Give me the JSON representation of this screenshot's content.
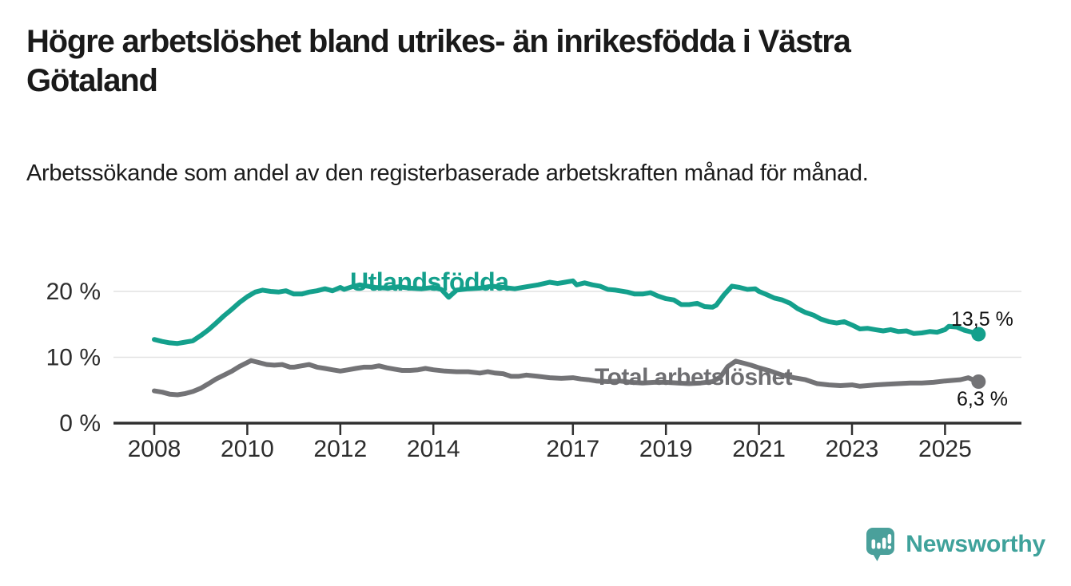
{
  "header": {
    "title": "Högre arbetslöshet bland utrikes- än inrikesfödda i Västra Götaland",
    "subtitle": "Arbetssökande som andel av den registerbaserade arbetskraften månad för månad."
  },
  "footer": {
    "brand": "Newsworthy"
  },
  "colors": {
    "accent_teal": "#14a08c",
    "line_gray": "#737376",
    "axis": "#303030",
    "gridline": "#e2e2e2",
    "logo_teal": "#4aa09b"
  },
  "chart_data": {
    "type": "line",
    "title": "Högre arbetslöshet bland utrikes- än inrikesfödda i Västra Götaland",
    "subtitle": "Arbetssökande som andel av den registerbaserade arbetskraften månad för månad.",
    "xlabel": "",
    "ylabel": "",
    "grid": "horizontal",
    "legend_position": "inline-labels",
    "xlim": [
      2007.1,
      2026.6
    ],
    "ylim": [
      0,
      24
    ],
    "x_ticks": [
      2008,
      2010,
      2012,
      2014,
      2017,
      2019,
      2021,
      2023,
      2025
    ],
    "y_ticks": [
      {
        "value": 0,
        "label": "0 %"
      },
      {
        "value": 10,
        "label": "10 %"
      },
      {
        "value": 20,
        "label": "20 %"
      }
    ],
    "series": [
      {
        "name": "Utlandsfödda",
        "color": "#14a08c",
        "end_label": "13,5 %",
        "end_value": 13.5,
        "points": [
          [
            2008.0,
            12.7
          ],
          [
            2008.17,
            12.4
          ],
          [
            2008.33,
            12.2
          ],
          [
            2008.5,
            12.1
          ],
          [
            2008.67,
            12.3
          ],
          [
            2008.83,
            12.5
          ],
          [
            2009.0,
            13.3
          ],
          [
            2009.17,
            14.2
          ],
          [
            2009.33,
            15.2
          ],
          [
            2009.5,
            16.3
          ],
          [
            2009.67,
            17.3
          ],
          [
            2009.83,
            18.3
          ],
          [
            2010.0,
            19.2
          ],
          [
            2010.17,
            19.9
          ],
          [
            2010.33,
            20.2
          ],
          [
            2010.5,
            20.0
          ],
          [
            2010.67,
            19.9
          ],
          [
            2010.83,
            20.1
          ],
          [
            2011.0,
            19.6
          ],
          [
            2011.17,
            19.6
          ],
          [
            2011.33,
            19.9
          ],
          [
            2011.5,
            20.1
          ],
          [
            2011.67,
            20.4
          ],
          [
            2011.83,
            20.1
          ],
          [
            2012.0,
            20.6
          ],
          [
            2012.08,
            20.3
          ],
          [
            2012.25,
            20.7
          ],
          [
            2012.42,
            21.0
          ],
          [
            2012.58,
            20.8
          ],
          [
            2012.75,
            20.6
          ],
          [
            2013.0,
            20.5
          ],
          [
            2013.25,
            20.7
          ],
          [
            2013.5,
            20.5
          ],
          [
            2013.75,
            20.4
          ],
          [
            2014.0,
            20.6
          ],
          [
            2014.17,
            20.3
          ],
          [
            2014.33,
            19.1
          ],
          [
            2014.5,
            20.2
          ],
          [
            2014.75,
            20.4
          ],
          [
            2015.0,
            20.5
          ],
          [
            2015.25,
            20.8
          ],
          [
            2015.5,
            20.6
          ],
          [
            2015.75,
            20.4
          ],
          [
            2016.0,
            20.7
          ],
          [
            2016.25,
            21.0
          ],
          [
            2016.5,
            21.4
          ],
          [
            2016.67,
            21.2
          ],
          [
            2016.83,
            21.4
          ],
          [
            2017.0,
            21.6
          ],
          [
            2017.08,
            21.0
          ],
          [
            2017.25,
            21.3
          ],
          [
            2017.42,
            21.0
          ],
          [
            2017.58,
            20.8
          ],
          [
            2017.75,
            20.3
          ],
          [
            2017.92,
            20.2
          ],
          [
            2018.0,
            20.1
          ],
          [
            2018.17,
            19.9
          ],
          [
            2018.33,
            19.6
          ],
          [
            2018.5,
            19.6
          ],
          [
            2018.67,
            19.8
          ],
          [
            2018.83,
            19.3
          ],
          [
            2019.0,
            18.9
          ],
          [
            2019.17,
            18.7
          ],
          [
            2019.33,
            18.0
          ],
          [
            2019.5,
            18.0
          ],
          [
            2019.67,
            18.2
          ],
          [
            2019.83,
            17.7
          ],
          [
            2020.0,
            17.6
          ],
          [
            2020.08,
            17.9
          ],
          [
            2020.25,
            19.5
          ],
          [
            2020.42,
            20.8
          ],
          [
            2020.58,
            20.6
          ],
          [
            2020.75,
            20.3
          ],
          [
            2020.92,
            20.4
          ],
          [
            2021.0,
            20.0
          ],
          [
            2021.17,
            19.5
          ],
          [
            2021.33,
            19.0
          ],
          [
            2021.5,
            18.7
          ],
          [
            2021.67,
            18.2
          ],
          [
            2021.83,
            17.4
          ],
          [
            2022.0,
            16.8
          ],
          [
            2022.17,
            16.4
          ],
          [
            2022.33,
            15.8
          ],
          [
            2022.5,
            15.4
          ],
          [
            2022.67,
            15.2
          ],
          [
            2022.83,
            15.4
          ],
          [
            2023.0,
            14.9
          ],
          [
            2023.17,
            14.3
          ],
          [
            2023.33,
            14.4
          ],
          [
            2023.5,
            14.2
          ],
          [
            2023.67,
            14.0
          ],
          [
            2023.83,
            14.2
          ],
          [
            2024.0,
            13.9
          ],
          [
            2024.17,
            14.0
          ],
          [
            2024.33,
            13.6
          ],
          [
            2024.5,
            13.7
          ],
          [
            2024.67,
            13.9
          ],
          [
            2024.83,
            13.8
          ],
          [
            2025.0,
            14.2
          ],
          [
            2025.08,
            14.7
          ],
          [
            2025.25,
            14.6
          ],
          [
            2025.42,
            14.1
          ],
          [
            2025.58,
            13.8
          ],
          [
            2025.72,
            13.5
          ]
        ]
      },
      {
        "name": "Total arbetslöshet",
        "color": "#737376",
        "end_label": "6,3 %",
        "end_value": 6.3,
        "points": [
          [
            2008.0,
            4.9
          ],
          [
            2008.17,
            4.7
          ],
          [
            2008.33,
            4.4
          ],
          [
            2008.5,
            4.3
          ],
          [
            2008.67,
            4.5
          ],
          [
            2008.83,
            4.8
          ],
          [
            2009.0,
            5.3
          ],
          [
            2009.17,
            6.0
          ],
          [
            2009.33,
            6.7
          ],
          [
            2009.5,
            7.3
          ],
          [
            2009.67,
            7.9
          ],
          [
            2009.83,
            8.6
          ],
          [
            2010.0,
            9.2
          ],
          [
            2010.08,
            9.5
          ],
          [
            2010.25,
            9.2
          ],
          [
            2010.42,
            8.9
          ],
          [
            2010.58,
            8.8
          ],
          [
            2010.75,
            8.9
          ],
          [
            2010.92,
            8.5
          ],
          [
            2011.0,
            8.5
          ],
          [
            2011.17,
            8.7
          ],
          [
            2011.33,
            8.9
          ],
          [
            2011.5,
            8.5
          ],
          [
            2011.67,
            8.3
          ],
          [
            2011.83,
            8.1
          ],
          [
            2012.0,
            7.9
          ],
          [
            2012.17,
            8.1
          ],
          [
            2012.33,
            8.3
          ],
          [
            2012.5,
            8.5
          ],
          [
            2012.67,
            8.5
          ],
          [
            2012.83,
            8.7
          ],
          [
            2013.0,
            8.4
          ],
          [
            2013.17,
            8.2
          ],
          [
            2013.33,
            8.0
          ],
          [
            2013.5,
            8.0
          ],
          [
            2013.67,
            8.1
          ],
          [
            2013.83,
            8.3
          ],
          [
            2014.0,
            8.1
          ],
          [
            2014.25,
            7.9
          ],
          [
            2014.5,
            7.8
          ],
          [
            2014.75,
            7.8
          ],
          [
            2015.0,
            7.6
          ],
          [
            2015.17,
            7.8
          ],
          [
            2015.33,
            7.6
          ],
          [
            2015.5,
            7.5
          ],
          [
            2015.67,
            7.1
          ],
          [
            2015.83,
            7.1
          ],
          [
            2016.0,
            7.3
          ],
          [
            2016.25,
            7.1
          ],
          [
            2016.5,
            6.9
          ],
          [
            2016.75,
            6.8
          ],
          [
            2017.0,
            6.9
          ],
          [
            2017.17,
            6.7
          ],
          [
            2017.33,
            6.6
          ],
          [
            2017.5,
            6.4
          ],
          [
            2017.75,
            6.3
          ],
          [
            2018.0,
            6.4
          ],
          [
            2018.25,
            6.2
          ],
          [
            2018.5,
            6.1
          ],
          [
            2018.75,
            6.2
          ],
          [
            2019.0,
            6.2
          ],
          [
            2019.25,
            6.1
          ],
          [
            2019.5,
            6.0
          ],
          [
            2019.75,
            6.1
          ],
          [
            2020.0,
            6.3
          ],
          [
            2020.17,
            7.0
          ],
          [
            2020.33,
            8.6
          ],
          [
            2020.5,
            9.4
          ],
          [
            2020.67,
            9.1
          ],
          [
            2020.83,
            8.8
          ],
          [
            2021.0,
            8.4
          ],
          [
            2021.25,
            7.9
          ],
          [
            2021.5,
            7.3
          ],
          [
            2021.75,
            6.9
          ],
          [
            2022.0,
            6.6
          ],
          [
            2022.25,
            6.0
          ],
          [
            2022.5,
            5.8
          ],
          [
            2022.75,
            5.7
          ],
          [
            2023.0,
            5.8
          ],
          [
            2023.17,
            5.6
          ],
          [
            2023.33,
            5.7
          ],
          [
            2023.5,
            5.8
          ],
          [
            2023.75,
            5.9
          ],
          [
            2024.0,
            6.0
          ],
          [
            2024.25,
            6.1
          ],
          [
            2024.5,
            6.1
          ],
          [
            2024.75,
            6.2
          ],
          [
            2025.0,
            6.4
          ],
          [
            2025.17,
            6.5
          ],
          [
            2025.33,
            6.6
          ],
          [
            2025.5,
            6.9
          ],
          [
            2025.6,
            6.6
          ],
          [
            2025.72,
            6.3
          ]
        ]
      }
    ]
  }
}
